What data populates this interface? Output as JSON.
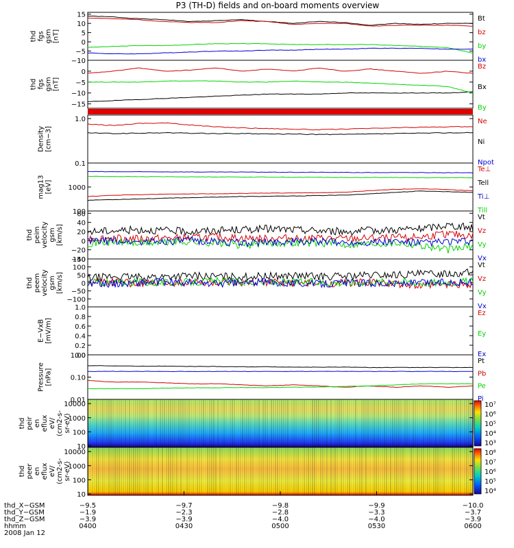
{
  "title": "P3 (TH-D) fields and on-board moments overview",
  "colors": {
    "black": "#000000",
    "red": "#d40000",
    "green": "#00d400",
    "blue": "#0000d4"
  },
  "chart_data": [
    {
      "type": "line",
      "ylabel": [
        "thd",
        "fgs",
        "gsm",
        "[nT]"
      ],
      "ylim": [
        -10,
        16
      ],
      "ticks": [
        "15",
        "10",
        "5",
        "0",
        "−5",
        "−10"
      ],
      "tick_values": [
        15,
        10,
        5,
        0,
        -5,
        -10
      ],
      "series": [
        {
          "name": "Bt",
          "color": "#000000",
          "values": [
            14,
            13.5,
            12.5,
            12,
            11,
            11.5,
            12,
            11,
            10,
            11,
            10.5,
            9,
            10,
            9.5,
            10,
            10
          ]
        },
        {
          "name": "bz",
          "color": "#d40000",
          "values": [
            13,
            12.5,
            12,
            11,
            10.5,
            10.5,
            11.5,
            11,
            9.5,
            10,
            10,
            8.5,
            9,
            9,
            9,
            8.5
          ]
        },
        {
          "name": "by",
          "color": "#00d400",
          "values": [
            -3,
            -2.5,
            -2,
            -2,
            -1.5,
            -1,
            -1,
            -1,
            -1.5,
            -1.5,
            -1.5,
            -1.5,
            -2,
            -2.5,
            -3,
            -6
          ]
        },
        {
          "name": "bx",
          "color": "#0000d4",
          "values": [
            -6,
            -6.5,
            -6.5,
            -6,
            -5.5,
            -5,
            -5,
            -4.5,
            -4.5,
            -4,
            -4,
            -3.5,
            -3.5,
            -3.5,
            -4,
            -4
          ]
        }
      ]
    },
    {
      "type": "line",
      "ylabel": [
        "thd",
        "fgs",
        "gsm",
        "[nT]"
      ],
      "ylim": [
        -17,
        5
      ],
      "ticks": [
        "0",
        "−5",
        "−10",
        "−15"
      ],
      "tick_values": [
        0,
        -5,
        -10,
        -15
      ],
      "series": [
        {
          "name": "Bz",
          "color": "#d40000",
          "values": [
            -1,
            0,
            1.5,
            0,
            0.5,
            1.5,
            0,
            1,
            0,
            1.5,
            0,
            1,
            0,
            -1,
            0,
            -1
          ]
        },
        {
          "name": "Bx",
          "color": "#000000",
          "values": [
            -14,
            -13.5,
            -13,
            -12.5,
            -12,
            -11.5,
            -11,
            -10.5,
            -10.5,
            -10.5,
            -10,
            -10,
            -10,
            -10,
            -10,
            -9.5
          ]
        },
        {
          "name": "By",
          "color": "#00d400",
          "values": [
            -5,
            -5,
            -5,
            -4.5,
            -4.5,
            -4.5,
            -5,
            -5,
            -4.5,
            -5,
            -5,
            -5.5,
            -6,
            -6.5,
            -7,
            -10
          ]
        }
      ]
    },
    {
      "type": "line",
      "ylabel": [
        "Density",
        "[cm−3]"
      ],
      "scale": "log",
      "ylim": [
        0.1,
        1.2
      ],
      "ticks": [
        "1.0",
        "0.1"
      ],
      "tick_values": [
        1.0,
        0.1
      ],
      "series": [
        {
          "name": "Ne",
          "color": "#d40000",
          "values": [
            0.75,
            0.7,
            0.78,
            0.8,
            0.72,
            0.65,
            0.62,
            0.6,
            0.58,
            0.56,
            0.58,
            0.6,
            0.62,
            0.64,
            0.65,
            0.66
          ]
        },
        {
          "name": "Ni",
          "color": "#000000",
          "values": [
            0.48,
            0.46,
            0.47,
            0.48,
            0.47,
            0.46,
            0.46,
            0.45,
            0.45,
            0.44,
            0.44,
            0.45,
            0.46,
            0.47,
            0.48,
            0.48
          ]
        },
        {
          "name": "Npot",
          "color": "#0000d4",
          "values": []
        }
      ]
    },
    {
      "type": "line",
      "ylabel": [
        "mag13",
        "[eV]"
      ],
      "scale": "log",
      "ylim": [
        100,
        10000
      ],
      "ticks": [
        "1000",
        "100"
      ],
      "tick_values": [
        1000,
        100
      ],
      "series": [
        {
          "name": "Te⊥",
          "color": "#d40000",
          "values": [
            400,
            450,
            480,
            500,
            520,
            520,
            540,
            560,
            560,
            580,
            600,
            700,
            800,
            850,
            780,
            700
          ]
        },
        {
          "name": "Tell",
          "color": "#000000",
          "values": [
            280,
            300,
            320,
            340,
            360,
            380,
            400,
            410,
            420,
            440,
            460,
            520,
            600,
            680,
            640,
            600
          ]
        },
        {
          "name": "Ti⊥",
          "color": "#0000d4",
          "values": [
            4400,
            4350,
            4300,
            4300,
            4250,
            4200,
            4200,
            4150,
            4100,
            4100,
            4050,
            4000,
            4000,
            4000,
            3950,
            3900
          ]
        },
        {
          "name": "Till",
          "color": "#00d400",
          "values": [
            2800,
            2750,
            2700,
            2700,
            2650,
            2650,
            2600,
            2600,
            2550,
            2550,
            2500,
            2500,
            2500,
            2450,
            2450,
            2400
          ]
        }
      ]
    },
    {
      "type": "line",
      "ylabel": [
        "thd",
        "peim",
        "velocity",
        "gsm",
        "[km/s]"
      ],
      "ylim": [
        -40,
        65
      ],
      "ticks": [
        "60",
        "40",
        "20",
        "0",
        "−20",
        "−40"
      ],
      "tick_values": [
        60,
        40,
        20,
        0,
        -20,
        -40
      ],
      "series": [
        {
          "name": "Vt",
          "color": "#000000",
          "values": [
            20,
            22,
            24,
            22,
            20,
            22,
            24,
            26,
            24,
            22,
            20,
            22,
            24,
            26,
            34,
            28
          ]
        },
        {
          "name": "Vz",
          "color": "#d40000",
          "values": [
            5,
            6,
            4,
            5,
            6,
            8,
            5,
            4,
            6,
            5,
            4,
            5,
            6,
            8,
            15,
            10
          ]
        },
        {
          "name": "Vy",
          "color": "#00d400",
          "values": [
            -5,
            -3,
            -6,
            -4,
            -2,
            -5,
            -10,
            -6,
            -4,
            -5,
            -8,
            -6,
            -4,
            -10,
            -20,
            -12
          ]
        },
        {
          "name": "Vx",
          "color": "#0000d4",
          "values": [
            -2,
            0,
            -3,
            -1,
            0,
            -2,
            -5,
            -3,
            -2,
            -2,
            -4,
            -3,
            -2,
            -5,
            -2,
            -2
          ]
        }
      ]
    },
    {
      "type": "line",
      "ylabel": [
        "thd",
        "peem",
        "velocity",
        "gsm",
        "[km/s]"
      ],
      "ylim": [
        -150,
        150
      ],
      "ticks": [
        "150",
        "100",
        "50",
        "0",
        "−50",
        "−100"
      ],
      "tick_values": [
        150,
        100,
        50,
        0,
        -50,
        -100
      ],
      "series": [
        {
          "name": "Vt",
          "color": "#000000",
          "values": [
            30,
            40,
            35,
            40,
            45,
            40,
            38,
            42,
            45,
            40,
            42,
            48,
            50,
            55,
            60,
            65
          ]
        },
        {
          "name": "Vz",
          "color": "#d40000",
          "values": [
            0,
            5,
            -5,
            0,
            5,
            0,
            -5,
            5,
            0,
            -5,
            0,
            5,
            -10,
            -20,
            -10,
            -5
          ]
        },
        {
          "name": "Vy",
          "color": "#00d400",
          "values": [
            5,
            0,
            5,
            0,
            5,
            10,
            5,
            0,
            5,
            5,
            0,
            5,
            10,
            0,
            5,
            10
          ]
        },
        {
          "name": "Vx",
          "color": "#0000d4",
          "values": [
            0,
            -5,
            0,
            5,
            0,
            -5,
            0,
            5,
            0,
            -5,
            0,
            0,
            -5,
            0,
            5,
            0
          ]
        }
      ]
    },
    {
      "type": "line",
      "ylabel": [
        "E−VxB",
        "[mV/m]"
      ],
      "ylim": [
        0,
        1.0
      ],
      "ticks": [
        "1.0",
        "0.8",
        "0.6",
        "0.4",
        "0.2",
        "0.0"
      ],
      "tick_values": [
        1.0,
        0.8,
        0.6,
        0.4,
        0.2,
        0.0
      ],
      "series": [
        {
          "name": "Ez",
          "color": "#d40000",
          "values": []
        },
        {
          "name": "Ey",
          "color": "#00d400",
          "values": []
        },
        {
          "name": "Ex",
          "color": "#0000d4",
          "values": []
        }
      ]
    },
    {
      "type": "line",
      "ylabel": [
        "Pressure",
        "[nPa]"
      ],
      "scale": "log",
      "ylim": [
        0.01,
        1.0
      ],
      "ticks": [
        "1.00",
        "0.10",
        "0.01"
      ],
      "tick_values": [
        1.0,
        0.1,
        0.01
      ],
      "series": [
        {
          "name": "Pt",
          "color": "#000000",
          "values": [
            0.33,
            0.32,
            0.31,
            0.31,
            0.3,
            0.3,
            0.29,
            0.29,
            0.28,
            0.28,
            0.28,
            0.27,
            0.27,
            0.27,
            0.27,
            0.27
          ]
        },
        {
          "name": "Pb",
          "color": "#d40000",
          "values": [
            0.07,
            0.06,
            0.06,
            0.055,
            0.05,
            0.05,
            0.045,
            0.04,
            0.045,
            0.04,
            0.035,
            0.04,
            0.035,
            0.04,
            0.035,
            0.04
          ]
        },
        {
          "name": "Pe",
          "color": "#00d400",
          "values": [
            0.03,
            0.03,
            0.03,
            0.032,
            0.033,
            0.033,
            0.034,
            0.034,
            0.035,
            0.036,
            0.038,
            0.04,
            0.045,
            0.05,
            0.05,
            0.05
          ]
        },
        {
          "name": "Pi",
          "color": "#0000d4",
          "values": [
            0.18,
            0.18,
            0.18,
            0.18,
            0.18,
            0.18,
            0.18,
            0.18,
            0.18,
            0.18,
            0.18,
            0.18,
            0.18,
            0.18,
            0.18,
            0.18
          ]
        }
      ]
    },
    {
      "type": "heatmap",
      "ylabel": [
        "thd",
        "peir",
        "en",
        "eflux",
        "eV/",
        "(cm2-s-",
        "sr-eV)"
      ],
      "scale": "log",
      "ylim": [
        8,
        20000
      ],
      "ticks": [
        "10000",
        "1000",
        "100",
        "10"
      ],
      "tick_values": [
        10000,
        1000,
        100,
        10
      ],
      "colorbar_ticks": [
        "10⁷",
        "10⁶",
        "10⁵",
        "10⁴",
        "10³"
      ]
    },
    {
      "type": "heatmap",
      "ylabel": [
        "thd",
        "peer",
        "en",
        "eflux",
        "eV/",
        "(cm2-s-",
        "sr-eV)"
      ],
      "scale": "log",
      "ylim": [
        8,
        20000
      ],
      "ticks": [
        "10000",
        "1000",
        "100",
        "10"
      ],
      "tick_values": [
        10000,
        1000,
        100,
        10
      ],
      "colorbar_ticks": [
        "10⁸",
        "10⁷",
        "10⁶",
        "10⁵",
        "10⁴"
      ]
    }
  ],
  "x_axis": {
    "rows": [
      {
        "label": "thd_X−GSM",
        "values": [
          "−9.5",
          "−9.7",
          "−9.8",
          "−9.9",
          "−10.0"
        ]
      },
      {
        "label": "thd_Y−GSM",
        "values": [
          "−1.9",
          "−2.3",
          "−2.8",
          "−3.3",
          "−3.7"
        ]
      },
      {
        "label": "thd_Z−GSM",
        "values": [
          "−3.9",
          "−3.9",
          "−4.0",
          "−4.0",
          "−3.9"
        ]
      },
      {
        "label": "hhmm",
        "values": [
          "0400",
          "0430",
          "0500",
          "0530",
          "0600"
        ]
      }
    ],
    "date": "2008 Jan 12"
  }
}
